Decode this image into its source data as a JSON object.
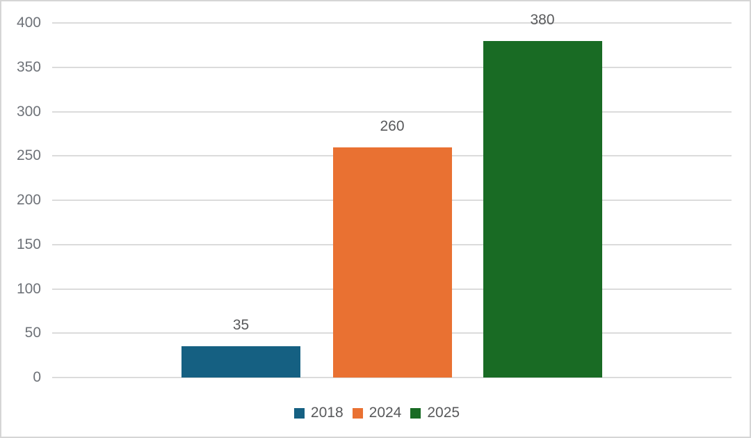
{
  "chart_data": {
    "type": "bar",
    "categories": [
      "2018",
      "2024",
      "2025"
    ],
    "values": [
      35,
      260,
      380
    ],
    "series": [
      {
        "name": "2018",
        "value": 35,
        "color": "#156082"
      },
      {
        "name": "2024",
        "value": 260,
        "color": "#E97132"
      },
      {
        "name": "2025",
        "value": 380,
        "color": "#196B24"
      }
    ],
    "data_labels": [
      "35",
      "260",
      "380"
    ],
    "title": "",
    "xlabel": "",
    "ylabel": "",
    "ylim": [
      0,
      400
    ],
    "ytick_step": 50,
    "yticks": [
      "0",
      "50",
      "100",
      "150",
      "200",
      "250",
      "300",
      "350",
      "400"
    ],
    "grid": true,
    "legend_position": "bottom",
    "legend_labels": [
      "2018",
      "2024",
      "2025"
    ]
  },
  "colors": {
    "background": "#FFFFFF",
    "chart_border": "#D5D5D5",
    "gridline": "#DBDBDB",
    "axis_label": "#6E7278",
    "data_label": "#58595B",
    "legend_label": "#58595B",
    "bar_blue": "#156082",
    "bar_orange": "#E97132",
    "bar_green": "#196B24"
  }
}
